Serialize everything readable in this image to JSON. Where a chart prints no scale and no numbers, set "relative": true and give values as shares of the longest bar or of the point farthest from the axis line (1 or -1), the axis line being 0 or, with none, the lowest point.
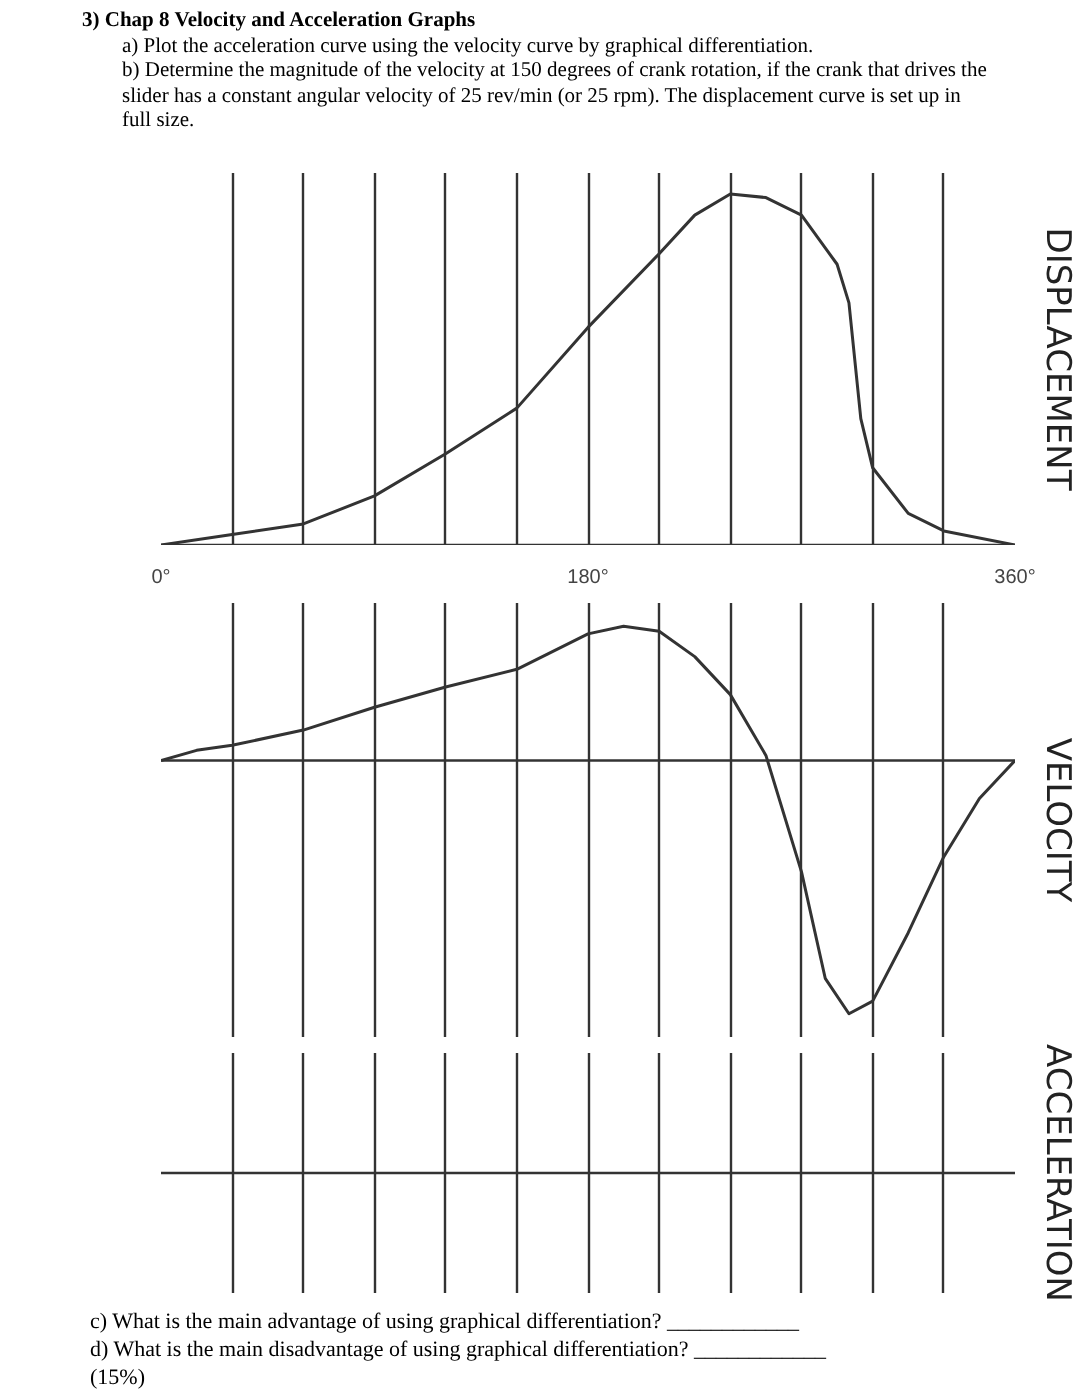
{
  "chart_data": [
    {
      "type": "line",
      "title": "3) Chap 8 Velocity and Acceleration Graphs",
      "annotations": [
        "a) Plot the acceleration curve using the velocity curve by graphical differentiation.",
        "b) Determine the magnitude of the velocity at 150 degrees of crank rotation, if the crank that drives the slider has a constant angular velocity of 25 rev/min (or 25 rpm). The displacement curve is set up in full size."
      ],
      "ylabel": "DISPLACEMENT",
      "relative": true,
      "xlim": [
        0,
        360
      ],
      "xticks": [
        {
          "value": 0,
          "label": "0°"
        },
        {
          "value": 30,
          "label": null
        },
        {
          "value": 60,
          "label": null
        },
        {
          "value": 90,
          "label": null
        },
        {
          "value": 120,
          "label": null
        },
        {
          "value": 150,
          "label": null
        },
        {
          "value": 180,
          "label": "180°"
        },
        {
          "value": 210,
          "label": null
        },
        {
          "value": 240,
          "label": null
        },
        {
          "value": 270,
          "label": null
        },
        {
          "value": 300,
          "label": null
        },
        {
          "value": 330,
          "label": null
        },
        {
          "value": 360,
          "label": "360°"
        }
      ],
      "grid": "x",
      "tick_labels": "x",
      "series": [
        {
          "color": "#333333",
          "x": [
            0,
            30,
            60,
            90,
            120,
            150,
            180,
            210,
            225,
            240,
            255,
            270,
            285,
            290,
            295,
            300,
            315,
            330,
            360
          ],
          "values": [
            0,
            0.03,
            0.06,
            0.14,
            0.26,
            0.39,
            0.62,
            0.83,
            0.94,
            1.0,
            0.99,
            0.94,
            0.8,
            0.69,
            0.36,
            0.22,
            0.09,
            0.04,
            0
          ]
        }
      ]
    },
    {
      "type": "line",
      "ylabel": "VELOCITY",
      "relative": true,
      "xlim": [
        0,
        360
      ],
      "xticks": [
        {
          "value": 0,
          "label": null
        },
        {
          "value": 30,
          "label": null
        },
        {
          "value": 60,
          "label": null
        },
        {
          "value": 90,
          "label": null
        },
        {
          "value": 120,
          "label": null
        },
        {
          "value": 150,
          "label": null
        },
        {
          "value": 180,
          "label": null
        },
        {
          "value": 210,
          "label": null
        },
        {
          "value": 240,
          "label": null
        },
        {
          "value": 270,
          "label": null
        },
        {
          "value": 300,
          "label": null
        },
        {
          "value": 330,
          "label": null
        },
        {
          "value": 360,
          "label": null
        }
      ],
      "grid": "x",
      "tick_labels": false,
      "series": [
        {
          "color": "#333333",
          "x": [
            0,
            15,
            30,
            60,
            90,
            120,
            150,
            180,
            195,
            210,
            225,
            240,
            255,
            270,
            280,
            290,
            300,
            315,
            330,
            345,
            360
          ],
          "values": [
            0,
            0.04,
            0.06,
            0.12,
            0.21,
            0.29,
            0.36,
            0.5,
            0.53,
            0.51,
            0.41,
            0.26,
            0.02,
            -0.44,
            -0.86,
            -1.0,
            -0.95,
            -0.68,
            -0.38,
            -0.15,
            0
          ]
        }
      ]
    },
    {
      "type": "other",
      "ylabel": "ACCELERATION",
      "annotations": [
        "c) What is the main advantage of using graphical differentiation? ____________",
        "d) What is the main disadvantage of using graphical differentiation? ____________",
        "(15%)"
      ]
    }
  ]
}
